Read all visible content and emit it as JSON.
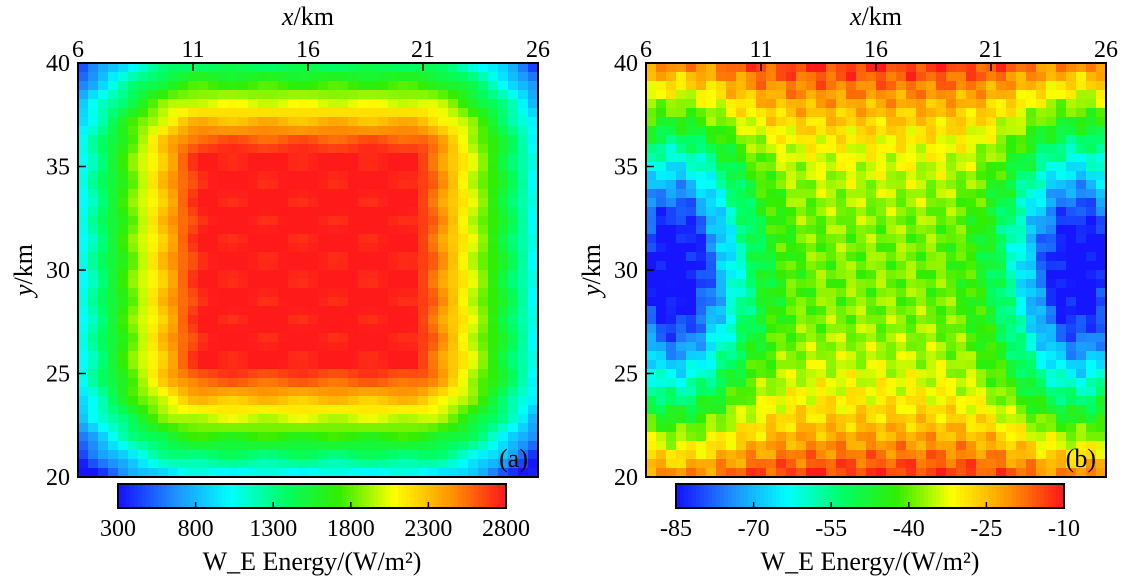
{
  "chart_data": [
    {
      "type": "heatmap",
      "panel_label": "(a)",
      "xlabel": "x/km",
      "xlabel_var": "x",
      "xlabel_unit": "/km",
      "ylabel": "y/km",
      "ylabel_var": "y",
      "ylabel_unit": "/km",
      "xlim": [
        6,
        26
      ],
      "ylim": [
        20,
        40
      ],
      "x_ticks": [
        6,
        11,
        16,
        21,
        26
      ],
      "y_ticks": [
        20,
        25,
        30,
        35,
        40
      ],
      "colorbar": {
        "label": "W_E Energy/(W/m²)",
        "min": 300,
        "max": 2800,
        "ticks": [
          300,
          800,
          1300,
          1800,
          2300,
          2800
        ]
      },
      "field": {
        "pattern": "rounded-square plateau",
        "center_value": 2800,
        "corner_value": 300,
        "plateau_x": [
          11.5,
          20.5
        ],
        "plateau_y": [
          25.5,
          35.5
        ]
      }
    },
    {
      "type": "heatmap",
      "panel_label": "(b)",
      "xlabel": "x/km",
      "xlabel_var": "x",
      "xlabel_unit": "/km",
      "ylabel": "y/km",
      "ylabel_var": "y",
      "ylabel_unit": "/km",
      "xlim": [
        6,
        26
      ],
      "ylim": [
        20,
        40
      ],
      "x_ticks": [
        6,
        11,
        16,
        21,
        26
      ],
      "y_ticks": [
        20,
        25,
        30,
        35,
        40
      ],
      "colorbar": {
        "label": "W_E Energy/(W/m²)",
        "min": -85,
        "max": -10,
        "ticks": [
          -85,
          -70,
          -55,
          -40,
          -25,
          -10
        ]
      },
      "field": {
        "pattern": "two low-energy lobes at left and right edges, high along top and bottom",
        "min_value": -85,
        "max_value": -10,
        "lobe_centers_x": [
          7.2,
          24.8
        ],
        "lobe_center_y": 30
      }
    }
  ],
  "colormap": [
    "#1515ff",
    "#1e90ff",
    "#00ffff",
    "#00ff66",
    "#33ee00",
    "#ffff00",
    "#ff9900",
    "#ff1a1a"
  ]
}
